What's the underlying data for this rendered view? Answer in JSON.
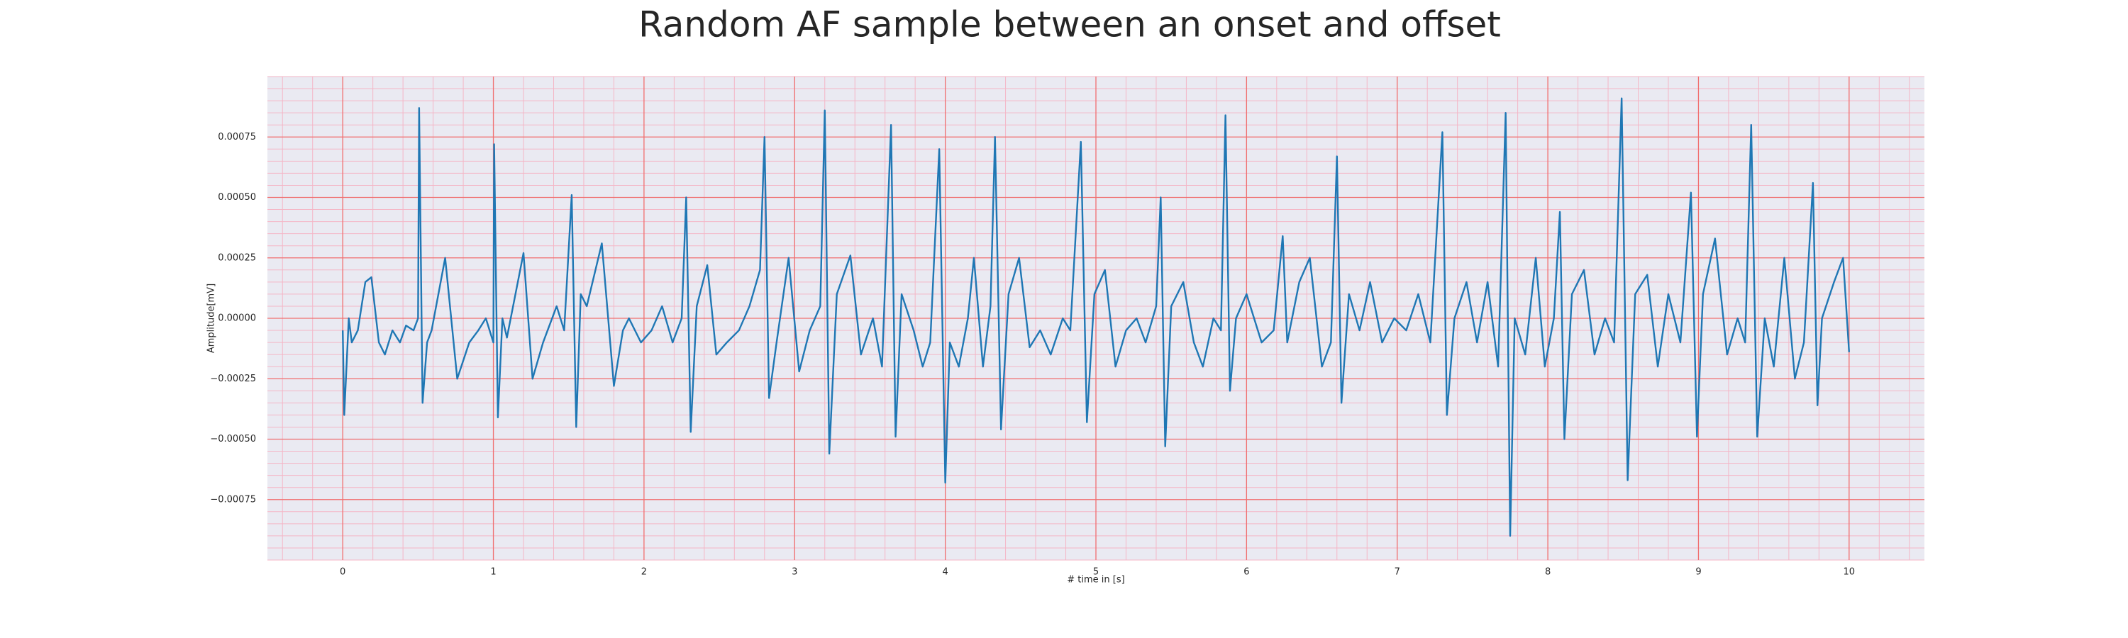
{
  "chart_data": {
    "type": "line",
    "title": "Random AF sample between an onset and offset",
    "xlabel": "# time in [s]",
    "ylabel": "Amplitude[mV]",
    "color": "#1f77b4",
    "grid": true,
    "xlim": [
      -0.5,
      10.5
    ],
    "ylim": [
      -0.001,
      0.001
    ],
    "xticks": [
      0,
      1,
      2,
      3,
      4,
      5,
      6,
      7,
      8,
      9,
      10
    ],
    "yticks": [
      {
        "value": -0.00075,
        "label": "−0.00075"
      },
      {
        "value": -0.0005,
        "label": "−0.00050"
      },
      {
        "value": -0.00025,
        "label": "−0.00025"
      },
      {
        "value": 0,
        "label": "0.00000"
      },
      {
        "value": 0.00025,
        "label": "0.00025"
      },
      {
        "value": 0.0005,
        "label": "0.00050"
      },
      {
        "value": 0.00075,
        "label": "0.00075"
      }
    ],
    "x": [
      0,
      0.01,
      0.04,
      0.06,
      0.1,
      0.15,
      0.19,
      0.24,
      0.28,
      0.33,
      0.38,
      0.42,
      0.47,
      0.5,
      0.507,
      0.53,
      0.56,
      0.59,
      0.68,
      0.76,
      0.84,
      0.9,
      0.95,
      1,
      1.005,
      1.03,
      1.06,
      1.09,
      1.2,
      1.26,
      1.33,
      1.42,
      1.47,
      1.52,
      1.55,
      1.58,
      1.62,
      1.72,
      1.8,
      1.86,
      1.9,
      1.98,
      2.05,
      2.12,
      2.19,
      2.25,
      2.28,
      2.31,
      2.35,
      2.42,
      2.48,
      2.55,
      2.63,
      2.7,
      2.77,
      2.8,
      2.83,
      2.88,
      2.96,
      3.03,
      3.1,
      3.17,
      3.2,
      3.23,
      3.28,
      3.37,
      3.44,
      3.52,
      3.58,
      3.64,
      3.67,
      3.71,
      3.79,
      3.85,
      3.9,
      3.96,
      4,
      4.03,
      4.09,
      4.15,
      4.19,
      4.25,
      4.3,
      4.33,
      4.37,
      4.42,
      4.49,
      4.56,
      4.63,
      4.7,
      4.78,
      4.83,
      4.9,
      4.94,
      4.99,
      5.06,
      5.13,
      5.2,
      5.27,
      5.33,
      5.4,
      5.43,
      5.46,
      5.5,
      5.58,
      5.65,
      5.71,
      5.78,
      5.83,
      5.86,
      5.89,
      5.93,
      6,
      6.1,
      6.18,
      6.24,
      6.27,
      6.35,
      6.42,
      6.5,
      6.56,
      6.6,
      6.63,
      6.68,
      6.75,
      6.82,
      6.9,
      6.98,
      7.06,
      7.14,
      7.22,
      7.3,
      7.33,
      7.38,
      7.46,
      7.53,
      7.6,
      7.67,
      7.72,
      7.75,
      7.78,
      7.85,
      7.92,
      7.98,
      8.04,
      8.08,
      8.11,
      8.16,
      8.24,
      8.31,
      8.38,
      8.44,
      8.49,
      8.53,
      8.58,
      8.66,
      8.73,
      8.8,
      8.88,
      8.95,
      8.99,
      9.03,
      9.11,
      9.19,
      9.26,
      9.31,
      9.35,
      9.39,
      9.44,
      9.5,
      9.57,
      9.64,
      9.7,
      9.76,
      9.79,
      9.82,
      9.9,
      9.96,
      10
    ],
    "values": [
      -5e-05,
      -0.0004,
      0,
      -0.0001,
      -5e-05,
      0.00015,
      0.00017,
      -0.0001,
      -0.00015,
      -5e-05,
      -0.0001,
      -3e-05,
      -5e-05,
      0,
      0.00087,
      -0.00035,
      -0.0001,
      -5e-05,
      0.00025,
      -0.00025,
      -0.0001,
      -5e-05,
      0,
      -0.0001,
      0.00072,
      -0.00041,
      0,
      -8e-05,
      0.00027,
      -0.00025,
      -0.0001,
      5e-05,
      -5e-05,
      0.00051,
      -0.00045,
      0.0001,
      5e-05,
      0.00031,
      -0.00028,
      -5e-05,
      0,
      -0.0001,
      -5e-05,
      5e-05,
      -0.0001,
      0,
      0.0005,
      -0.00047,
      5e-05,
      0.00022,
      -0.00015,
      -0.0001,
      -5e-05,
      5e-05,
      0.0002,
      0.00075,
      -0.00033,
      -0.0001,
      0.00025,
      -0.00022,
      -5e-05,
      5e-05,
      0.00086,
      -0.00056,
      0.0001,
      0.00026,
      -0.00015,
      0,
      -0.0002,
      0.0008,
      -0.00049,
      0.0001,
      -5e-05,
      -0.0002,
      -0.0001,
      0.0007,
      -0.00068,
      -0.0001,
      -0.0002,
      0,
      0.00025,
      -0.0002,
      5e-05,
      0.00075,
      -0.00046,
      0.0001,
      0.00025,
      -0.00012,
      -5e-05,
      -0.00015,
      0,
      -5e-05,
      0.00073,
      -0.00043,
      0.0001,
      0.0002,
      -0.0002,
      -5e-05,
      0,
      -0.0001,
      5e-05,
      0.0005,
      -0.00053,
      5e-05,
      0.00015,
      -0.0001,
      -0.0002,
      0,
      -5e-05,
      0.00084,
      -0.0003,
      0,
      0.0001,
      -0.0001,
      -5e-05,
      0.00034,
      -0.0001,
      0.00015,
      0.00025,
      -0.0002,
      -0.0001,
      0.00067,
      -0.00035,
      0.0001,
      -5e-05,
      0.00015,
      -0.0001,
      0,
      -5e-05,
      0.0001,
      -0.0001,
      0.00077,
      -0.0004,
      0,
      0.00015,
      -0.0001,
      0.00015,
      -0.0002,
      0.00085,
      -0.0009,
      0,
      -0.00015,
      0.00025,
      -0.0002,
      0,
      0.00044,
      -0.0005,
      0.0001,
      0.0002,
      -0.00015,
      0,
      -0.0001,
      0.00091,
      -0.00067,
      0.0001,
      0.00018,
      -0.0002,
      0.0001,
      -0.0001,
      0.00052,
      -0.00049,
      0.0001,
      0.00033,
      -0.00015,
      0,
      -0.0001,
      0.0008,
      -0.00049,
      0,
      -0.0002,
      0.00025,
      -0.00025,
      -0.0001,
      0.00056,
      -0.00036,
      0,
      0.00015,
      0.00025,
      -0.00014
    ]
  }
}
